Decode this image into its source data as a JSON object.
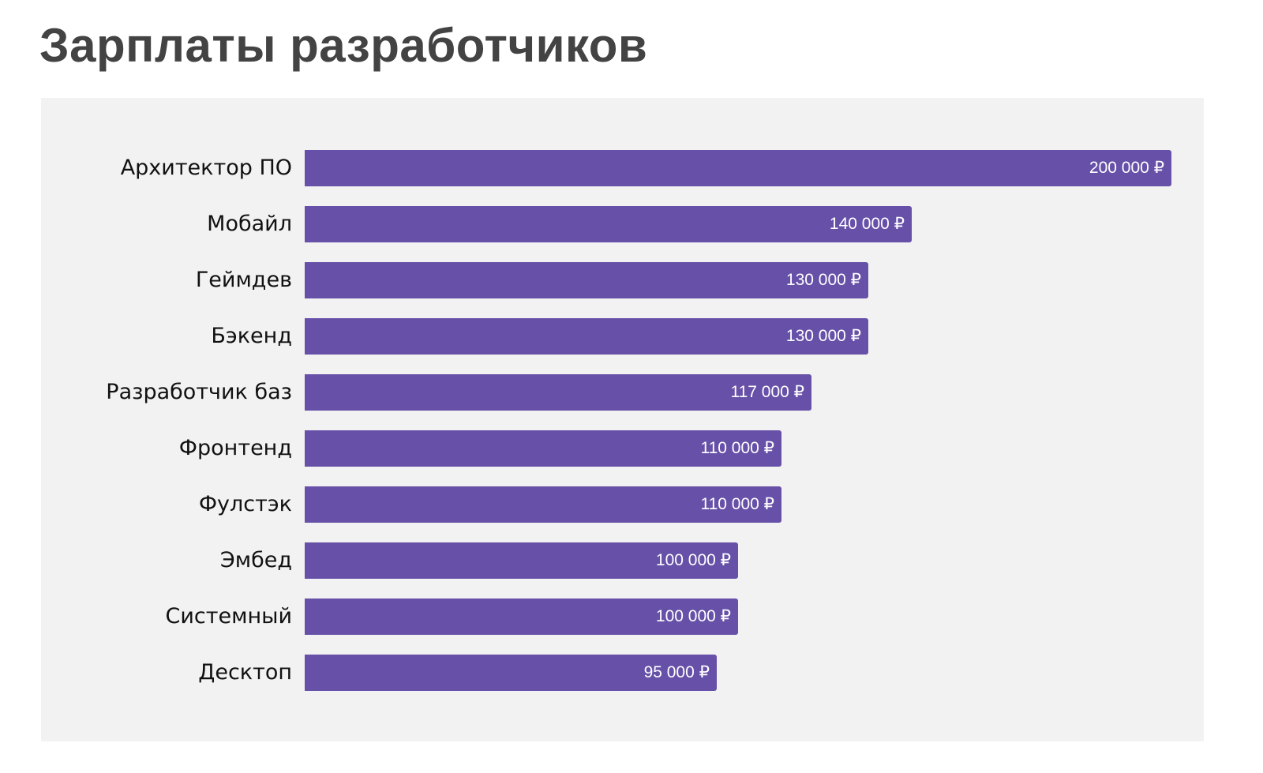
{
  "title": "Зарплаты разработчиков",
  "colors": {
    "bar": "#6750a8",
    "panel": "#f2f2f2",
    "title": "#434343"
  },
  "chart_data": {
    "type": "bar",
    "orientation": "horizontal",
    "title": "Зарплаты разработчиков",
    "xlabel": "",
    "ylabel": "",
    "unit": "₽",
    "xlim": [
      0,
      200000
    ],
    "grid": false,
    "legend": null,
    "categories": [
      "Архитектор ПО",
      "Мобайл",
      "Геймдев",
      "Бэкенд",
      "Разработчик баз",
      "Фронтенд",
      "Фулстэк",
      "Эмбед",
      "Системный",
      "Десктоп"
    ],
    "values": [
      200000,
      140000,
      130000,
      130000,
      117000,
      110000,
      110000,
      100000,
      100000,
      95000
    ],
    "value_labels": [
      "200 000 ₽",
      "140 000 ₽",
      "130 000 ₽",
      "130 000 ₽",
      "117 000 ₽",
      "110 000 ₽",
      "110 000 ₽",
      "100 000 ₽",
      "100 000 ₽",
      "95 000 ₽"
    ]
  }
}
